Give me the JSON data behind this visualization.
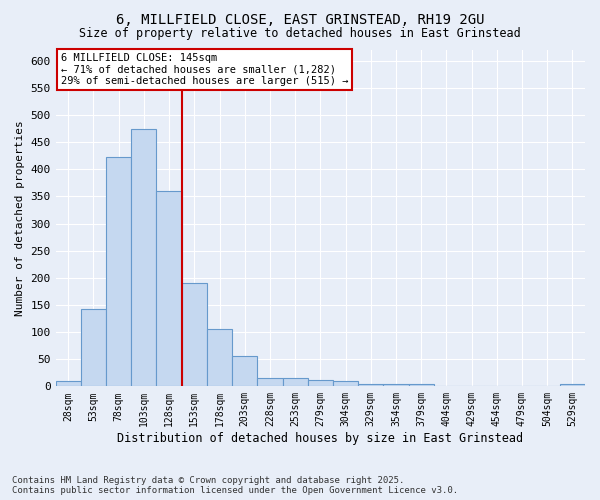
{
  "title_line1": "6, MILLFIELD CLOSE, EAST GRINSTEAD, RH19 2GU",
  "title_line2": "Size of property relative to detached houses in East Grinstead",
  "xlabel": "Distribution of detached houses by size in East Grinstead",
  "ylabel": "Number of detached properties",
  "categories": [
    "28sqm",
    "53sqm",
    "78sqm",
    "103sqm",
    "128sqm",
    "153sqm",
    "178sqm",
    "203sqm",
    "228sqm",
    "253sqm",
    "279sqm",
    "304sqm",
    "329sqm",
    "354sqm",
    "379sqm",
    "404sqm",
    "429sqm",
    "454sqm",
    "479sqm",
    "504sqm",
    "529sqm"
  ],
  "values": [
    10,
    143,
    422,
    475,
    360,
    190,
    105,
    55,
    15,
    15,
    12,
    10,
    5,
    5,
    4,
    0,
    0,
    0,
    0,
    0,
    5
  ],
  "bar_color": "#c5d8f0",
  "bar_edge_color": "#6699cc",
  "annotation_line1": "6 MILLFIELD CLOSE: 145sqm",
  "annotation_line2": "← 71% of detached houses are smaller (1,282)",
  "annotation_line3": "29% of semi-detached houses are larger (515) →",
  "vline_color": "#cc0000",
  "vline_position": 4.5,
  "annotation_box_color": "#ffffff",
  "annotation_box_edge": "#cc0000",
  "ylim": [
    0,
    620
  ],
  "yticks": [
    0,
    50,
    100,
    150,
    200,
    250,
    300,
    350,
    400,
    450,
    500,
    550,
    600
  ],
  "background_color": "#e8eef8",
  "grid_color": "#ffffff",
  "footer_line1": "Contains HM Land Registry data © Crown copyright and database right 2025.",
  "footer_line2": "Contains public sector information licensed under the Open Government Licence v3.0."
}
